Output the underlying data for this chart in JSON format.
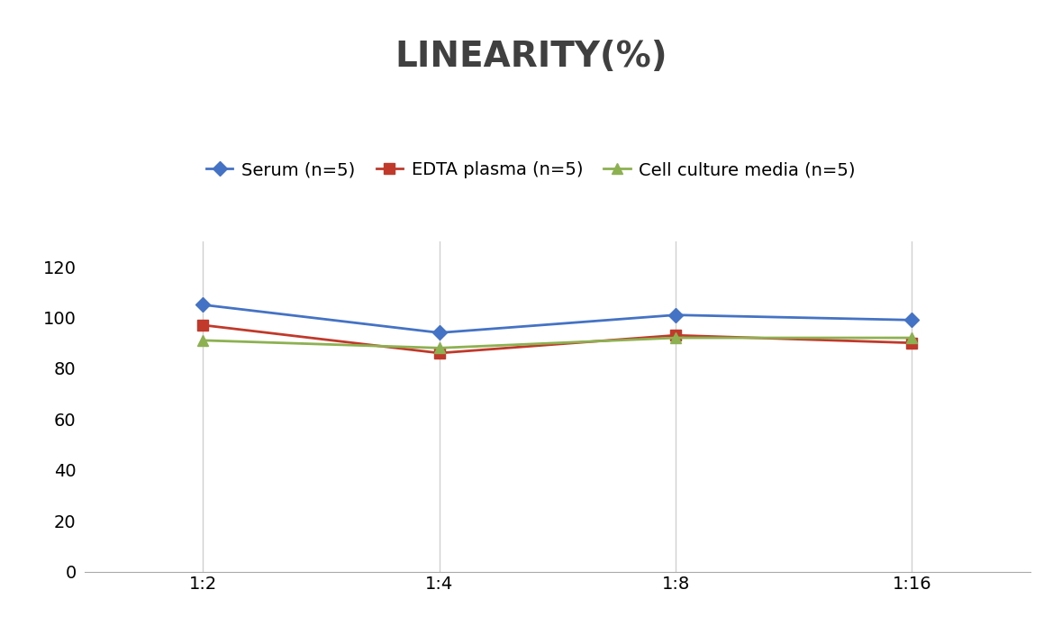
{
  "title": "LINEARITY(%)",
  "title_fontsize": 28,
  "title_fontweight": "bold",
  "title_color": "#404040",
  "x_labels": [
    "1:2",
    "1:4",
    "1:8",
    "1:16"
  ],
  "x_positions": [
    0,
    1,
    2,
    3
  ],
  "series": [
    {
      "label": "Serum (n=5)",
      "color": "#4472C4",
      "marker": "D",
      "markersize": 8,
      "linewidth": 2,
      "values": [
        105,
        94,
        101,
        99
      ]
    },
    {
      "label": "EDTA plasma (n=5)",
      "color": "#C0392B",
      "marker": "s",
      "markersize": 8,
      "linewidth": 2,
      "values": [
        97,
        86,
        93,
        90
      ]
    },
    {
      "label": "Cell culture media (n=5)",
      "color": "#8DB050",
      "marker": "^",
      "markersize": 8,
      "linewidth": 2,
      "values": [
        91,
        88,
        92,
        92
      ]
    }
  ],
  "ylim": [
    0,
    130
  ],
  "yticks": [
    0,
    20,
    40,
    60,
    80,
    100,
    120
  ],
  "grid_color": "#D0D0D0",
  "grid_linewidth": 1,
  "background_color": "#FFFFFF",
  "legend_fontsize": 14,
  "tick_fontsize": 14,
  "figsize": [
    11.79,
    7.05
  ],
  "dpi": 100
}
